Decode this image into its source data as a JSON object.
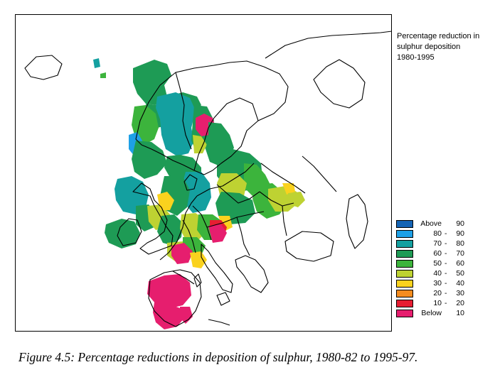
{
  "map": {
    "legend_title": [
      "Percentage reduction in",
      "sulphur deposition",
      "1980-1995"
    ],
    "legend": [
      {
        "lo": "Above",
        "dash": "",
        "hi": "90",
        "color": "#1464b4",
        "min": 90
      },
      {
        "lo": "80",
        "dash": "-",
        "hi": "90",
        "color": "#1ea0e6",
        "min": 80
      },
      {
        "lo": "70",
        "dash": "-",
        "hi": "80",
        "color": "#14a0a0",
        "min": 70
      },
      {
        "lo": "60",
        "dash": "-",
        "hi": "70",
        "color": "#1e9b55",
        "min": 60
      },
      {
        "lo": "50",
        "dash": "-",
        "hi": "60",
        "color": "#3cb43c",
        "min": 50
      },
      {
        "lo": "40",
        "dash": "-",
        "hi": "50",
        "color": "#bed232",
        "min": 40
      },
      {
        "lo": "30",
        "dash": "-",
        "hi": "40",
        "color": "#fad21e",
        "min": 30
      },
      {
        "lo": "20",
        "dash": "-",
        "hi": "30",
        "color": "#f58c1e",
        "min": 20
      },
      {
        "lo": "10",
        "dash": "-",
        "hi": "20",
        "color": "#e61e32",
        "min": 10
      },
      {
        "lo": "Below",
        "dash": "",
        "hi": "10",
        "color": "#e61e6e",
        "min": 0
      }
    ]
  },
  "caption": "Figure 4.5:   Percentage reductions in deposition of sulphur, 1980-82 to 1995-97."
}
